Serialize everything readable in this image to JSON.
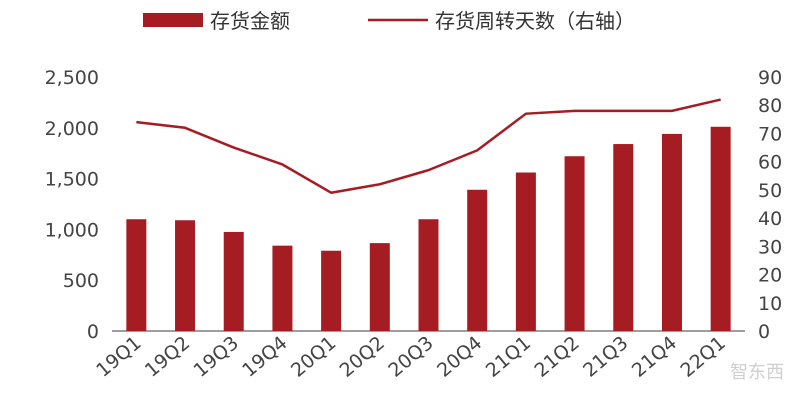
{
  "colors": {
    "bar": "#a51c22",
    "line": "#a51c22",
    "axis": "#7f7f7f",
    "text": "#444444"
  },
  "watermark": {
    "text": "智东西"
  },
  "chart_data": {
    "type": "bar",
    "title": "",
    "xlabel": "",
    "ylabel": "",
    "categories": [
      "19Q1",
      "19Q2",
      "19Q3",
      "19Q4",
      "20Q1",
      "20Q2",
      "20Q3",
      "20Q4",
      "21Q1",
      "21Q2",
      "21Q3",
      "21Q4",
      "22Q1"
    ],
    "ylim": [
      0,
      2500
    ],
    "y2lim": [
      0,
      90
    ],
    "y_ticks": [
      "0",
      "500",
      "1,000",
      "1,500",
      "2,000",
      "2,500"
    ],
    "y2_ticks": [
      "0",
      "10",
      "20",
      "30",
      "40",
      "50",
      "60",
      "70",
      "80",
      "90"
    ],
    "grid": false,
    "legend_position": "top",
    "series": [
      {
        "name": "存货金额",
        "type": "bar",
        "axis": "left",
        "values": [
          1100,
          1090,
          975,
          840,
          790,
          865,
          1100,
          1390,
          1560,
          1720,
          1840,
          1940,
          2010
        ]
      },
      {
        "name": "存货周转天数（右轴）",
        "type": "line",
        "axis": "right",
        "values": [
          74,
          72,
          65,
          59,
          49,
          52,
          57,
          64,
          77,
          78,
          78,
          78,
          82
        ]
      }
    ]
  }
}
